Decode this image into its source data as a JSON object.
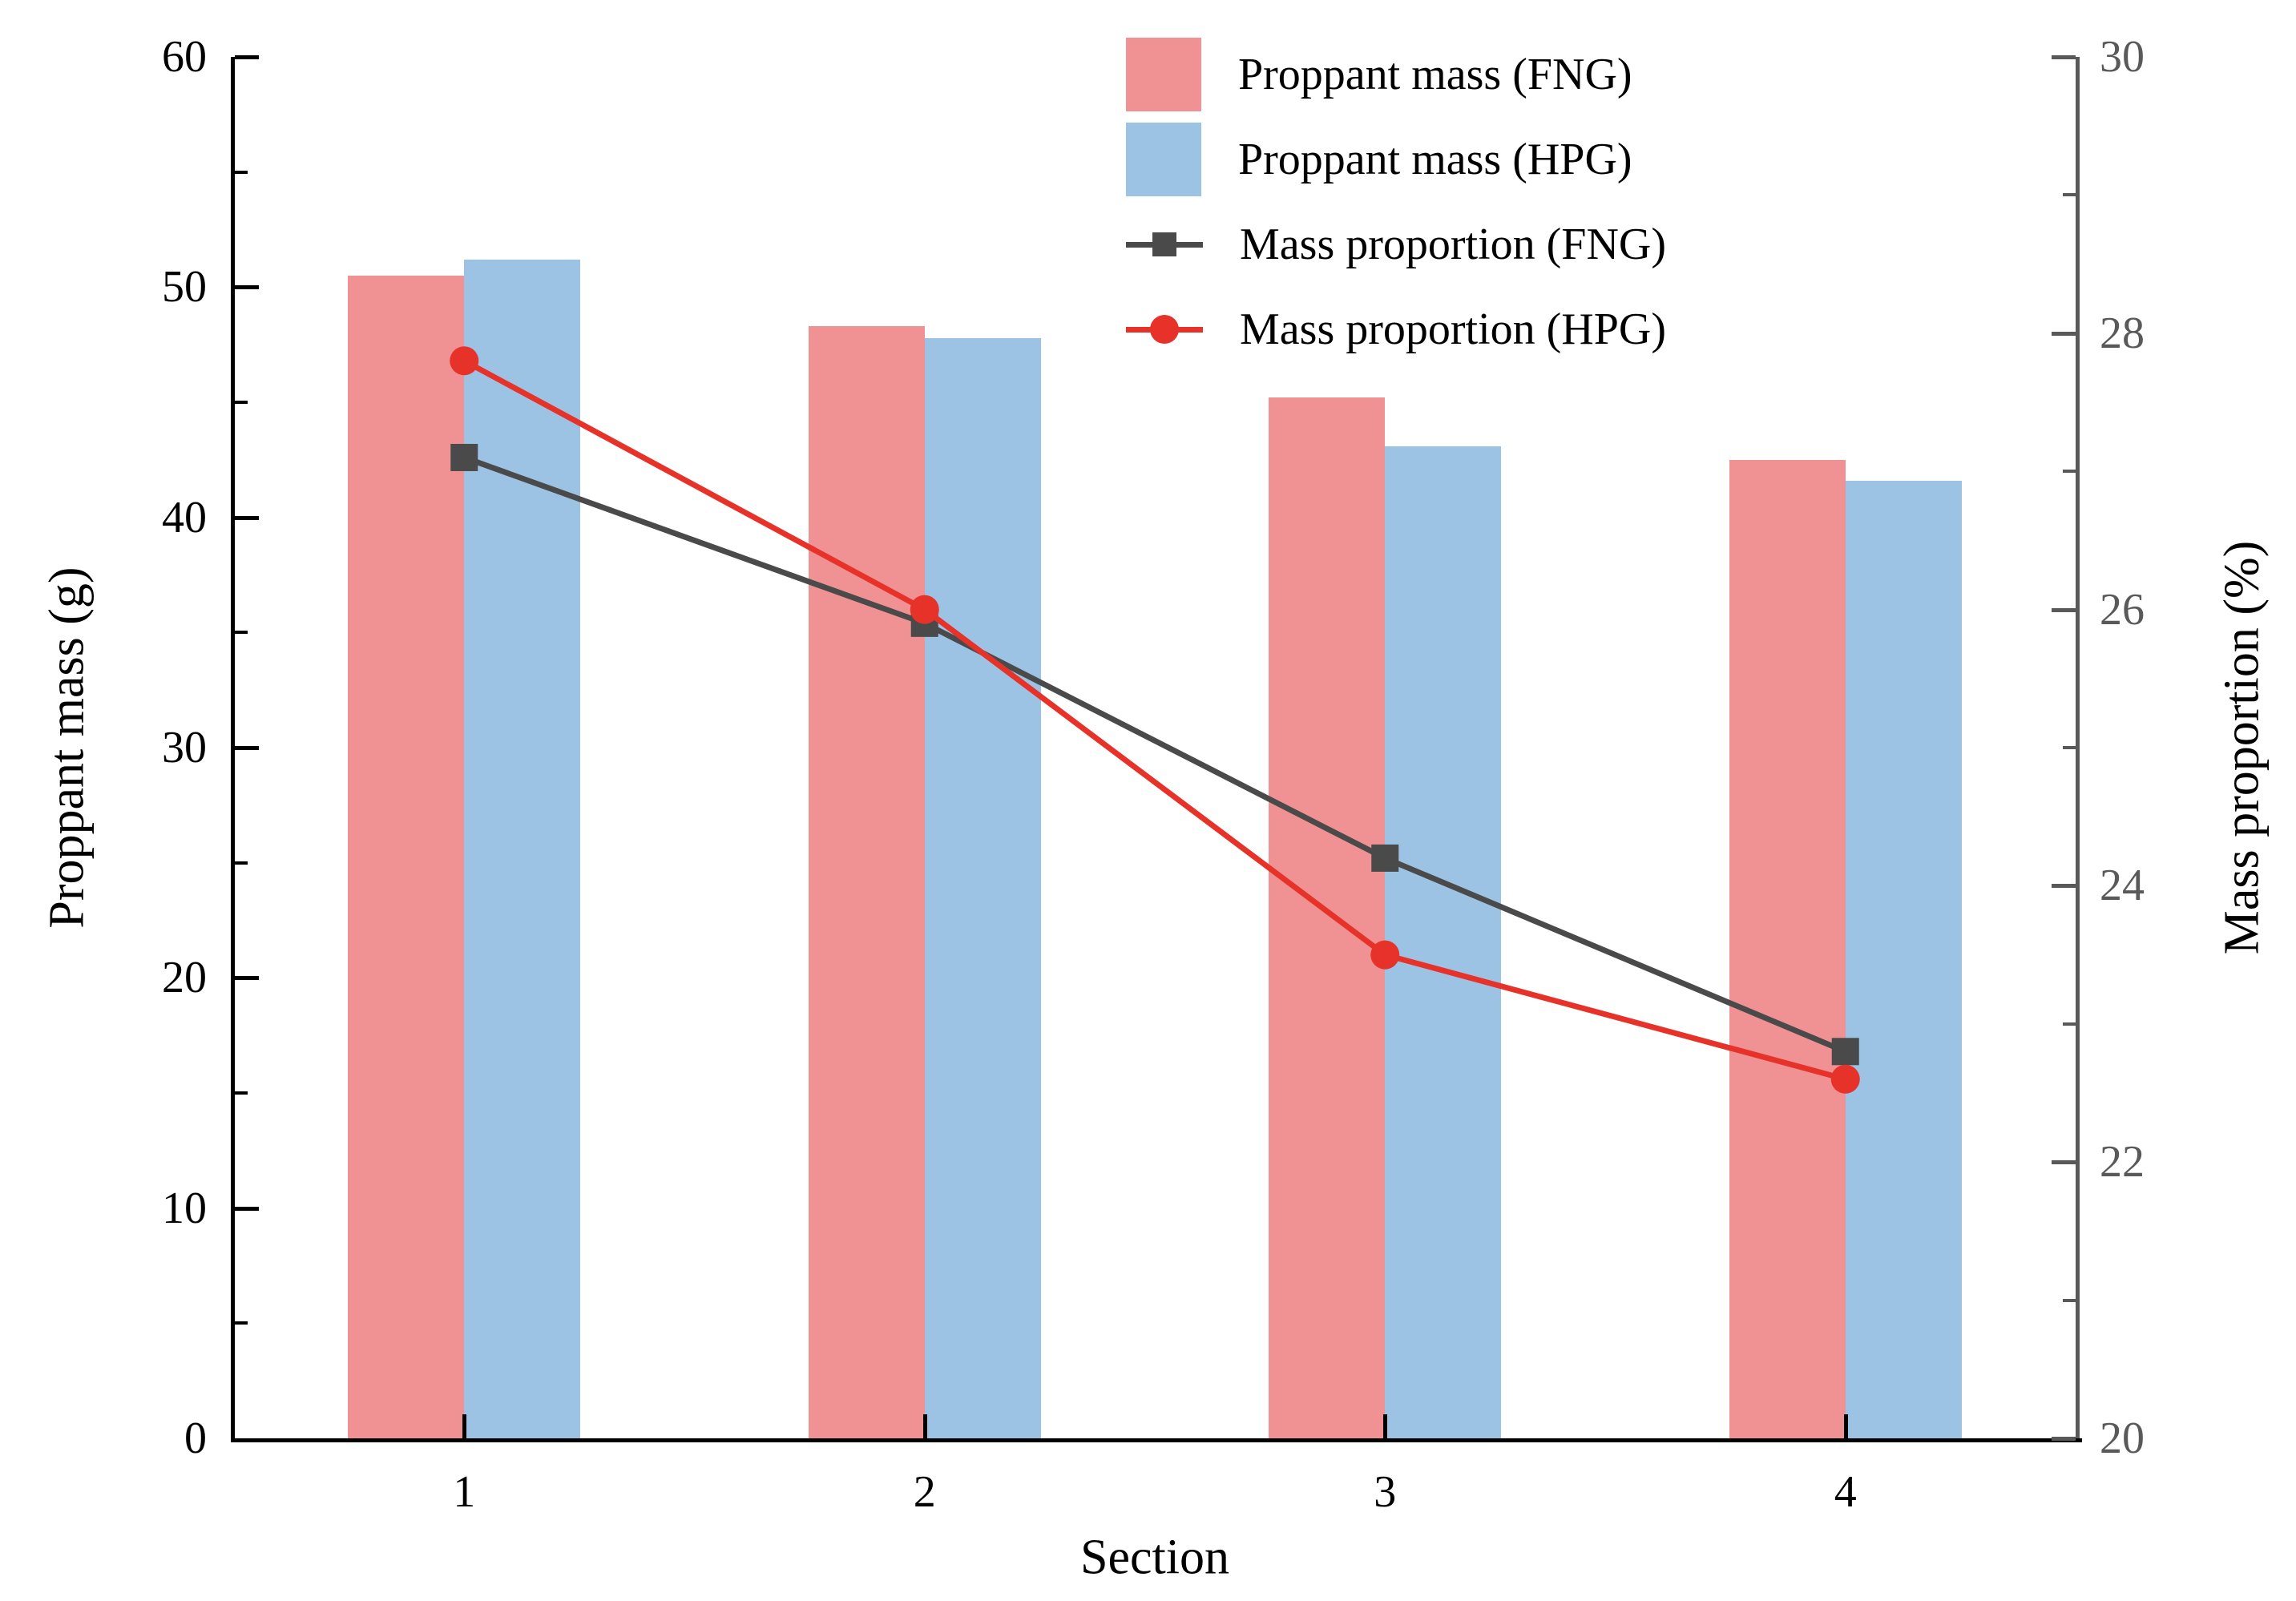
{
  "chart_data": {
    "type": "bar+line",
    "categories": [
      "1",
      "2",
      "3",
      "4"
    ],
    "xlabel": "Section",
    "ylabel_left": "Proppant mass (g)",
    "ylabel_right": "Mass proportion (%)",
    "y_left": {
      "min": 0,
      "max": 60,
      "major_ticks": [
        0,
        10,
        20,
        30,
        40,
        50,
        60
      ],
      "minor_ticks": [
        5,
        15,
        25,
        35,
        45,
        55
      ],
      "tick_labels": [
        "0",
        "10",
        "20",
        "30",
        "40",
        "50",
        "60"
      ]
    },
    "y_right": {
      "min": 20,
      "max": 30,
      "major_ticks": [
        20,
        22,
        24,
        26,
        28,
        30
      ],
      "minor_ticks": [
        21,
        23,
        25,
        27,
        29
      ],
      "tick_labels": [
        "20",
        "22",
        "24",
        "26",
        "28",
        "30"
      ]
    },
    "series": [
      {
        "name": "Proppant mass (FNG)",
        "type": "bar",
        "axis": "left",
        "color": "#F09193",
        "values": [
          50.5,
          48.3,
          45.2,
          42.5
        ]
      },
      {
        "name": "Proppant mass (HPG)",
        "type": "bar",
        "axis": "left",
        "color": "#9CC3E3",
        "values": [
          51.2,
          47.8,
          43.1,
          41.6
        ]
      },
      {
        "name": "Mass proportion (FNG)",
        "type": "line",
        "marker": "square",
        "axis": "right",
        "color": "#4A4A4A",
        "values": [
          27.1,
          25.9,
          24.2,
          22.8
        ]
      },
      {
        "name": "Mass proportion (HPG)",
        "type": "line",
        "marker": "circle",
        "axis": "right",
        "color": "#E63229",
        "values": [
          27.8,
          26.0,
          23.5,
          22.6
        ]
      }
    ],
    "legend_position": "top-right-inside",
    "grid": false
  },
  "colors": {
    "axis_black": "#000000",
    "axis_right_gray": "#595959",
    "background": "#FFFFFF"
  }
}
